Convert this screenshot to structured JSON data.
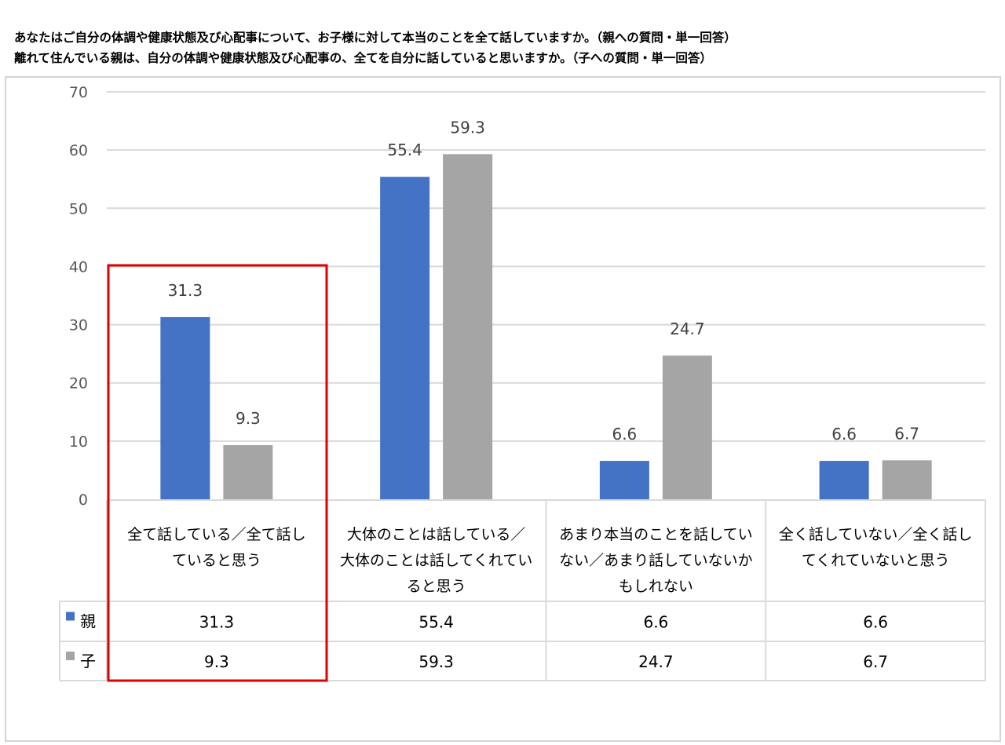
{
  "title_lines": [
    "あなたはご自分の体調や健康状態及び心配事について、お子様に対して本当のことを全て話していますか。（親への質問・単一回答）",
    "離れて住んでいる親は、自分の体調や健康状態及び心配事の、全てを自分に話していると思いますか。（子への質問・単一回答）"
  ],
  "chart_data": {
    "type": "bar",
    "title": "",
    "xlabel": "",
    "ylabel": "",
    "ylim": [
      0,
      70
    ],
    "yticks": [
      0,
      10,
      20,
      30,
      40,
      50,
      60,
      70
    ],
    "grid": true,
    "legend": "data-table-left",
    "categories": [
      [
        "全て話している／全て話し",
        "ていると思う"
      ],
      [
        "大体のことは話している／",
        "大体のことは話してくれてい",
        "ると思う"
      ],
      [
        "あまり本当のことを話してい",
        "ない／あまり話していないか",
        "もしれない"
      ],
      [
        "全く話していない／全く話し",
        "てくれていないと思う"
      ]
    ],
    "series": [
      {
        "name": "親",
        "color": "#4472c4",
        "values": [
          31.3,
          55.4,
          6.6,
          6.6
        ]
      },
      {
        "name": "子",
        "color": "#a5a5a5",
        "values": [
          9.3,
          59.3,
          24.7,
          6.7
        ]
      }
    ],
    "data_labels": [
      [
        "31.3",
        "55.4",
        "6.6",
        "6.6"
      ],
      [
        "9.3",
        "59.3",
        "24.7",
        "6.7"
      ]
    ],
    "highlight": {
      "category_index": 0,
      "color": "#e00000"
    }
  }
}
